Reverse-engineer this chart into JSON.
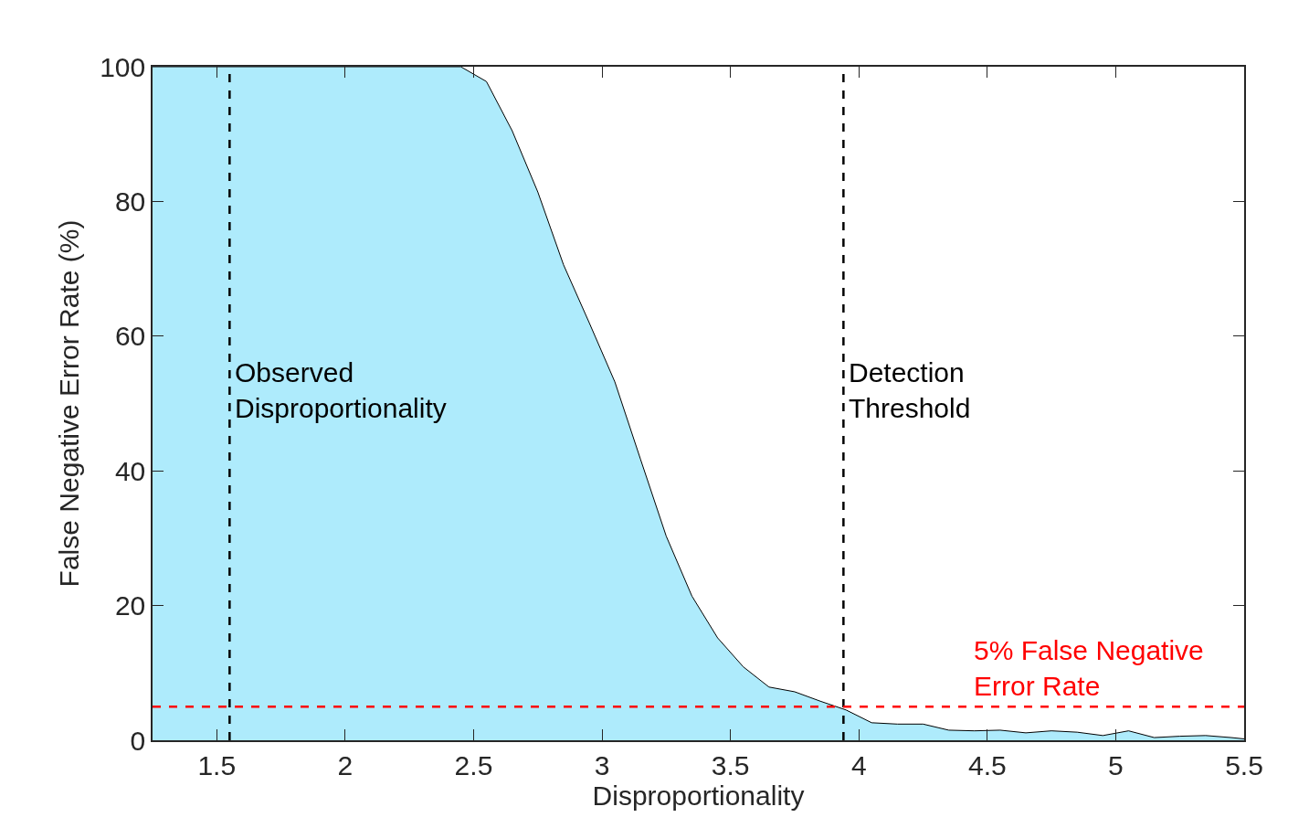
{
  "chart_data": {
    "type": "area",
    "xlabel": "Disproportionality",
    "ylabel": "False Negative Error Rate (%)",
    "series": [
      {
        "color": "#aeebfc",
        "x": [
          1.25,
          2.45,
          2.55,
          2.65,
          2.75,
          2.85,
          2.95,
          3.05,
          3.15,
          3.25,
          3.35,
          3.45,
          3.55,
          3.65,
          3.75,
          3.85,
          3.95,
          4.05,
          4.15,
          4.25,
          4.35,
          4.45,
          4.55,
          4.65,
          4.75,
          4.85,
          4.95,
          5.05,
          5.15,
          5.25,
          5.35,
          5.45,
          5.5
        ],
        "values": [
          100,
          100,
          97.8,
          90.5,
          81.4,
          70.6,
          62,
          53.2,
          41.7,
          30.3,
          21.4,
          15.2,
          10.9,
          7.9,
          7.2,
          5.8,
          4.5,
          2.6,
          2.4,
          2.4,
          1.5,
          1.4,
          1.5,
          1.1,
          1.4,
          1.2,
          0.7,
          1.4,
          0.4,
          0.6,
          0.7,
          0.4,
          0.2
        ]
      }
    ],
    "xlim": [
      1.25,
      5.5
    ],
    "xticks": [
      1.5,
      2,
      2.5,
      3,
      3.5,
      4,
      4.5,
      5,
      5.5
    ],
    "ylim": [
      0,
      100
    ],
    "yticks": [
      0,
      20,
      40,
      60,
      80,
      100
    ],
    "ref_lines": [
      {
        "axis": "x",
        "value": 1.55,
        "label": "Observed\nDisproportionality",
        "color": "#000000",
        "line_style": "dashed"
      },
      {
        "axis": "x",
        "value": 3.94,
        "label": "Detection\nThreshold",
        "color": "#000000",
        "line_style": "dashed"
      },
      {
        "axis": "y",
        "value": 5,
        "label": "5% False Negative\nError Rate",
        "color": "#ff0000",
        "line_style": "dashed"
      }
    ]
  }
}
